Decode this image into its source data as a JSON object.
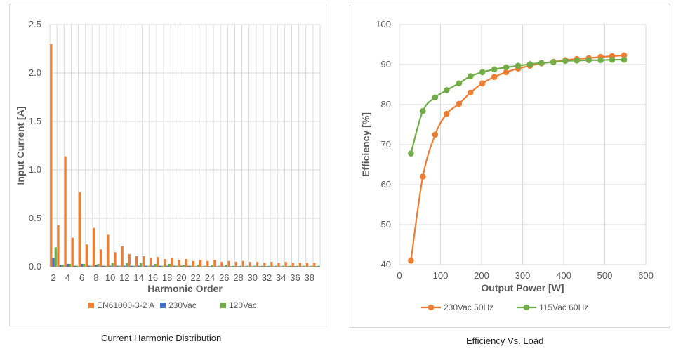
{
  "captions": {
    "left": "Current Harmonic Distribution",
    "right": "Efficiency Vs. Load"
  },
  "colors": {
    "en61000": "#ED7D31",
    "v230": "#4472C4",
    "v120": "#70AD47",
    "grid": "#d9d9d9",
    "axis_text": "#595959"
  },
  "chart_data": [
    {
      "type": "bar",
      "title": "",
      "xlabel": "Harmonic Order",
      "ylabel": "Input Current [A]",
      "ylim": [
        0,
        2.5
      ],
      "yticks": [
        "0.0",
        "0.5",
        "1.0",
        "1.5",
        "2.0",
        "2.5"
      ],
      "grid": true,
      "legend": "bottom",
      "categories": [
        "2",
        "3",
        "4",
        "5",
        "6",
        "7",
        "8",
        "9",
        "10",
        "11",
        "12",
        "13",
        "14",
        "15",
        "16",
        "17",
        "18",
        "19",
        "20",
        "21",
        "22",
        "23",
        "24",
        "25",
        "26",
        "27",
        "28",
        "29",
        "30",
        "31",
        "32",
        "33",
        "34",
        "35",
        "36",
        "37",
        "38",
        "39"
      ],
      "xtick_labels": [
        "2",
        "4",
        "6",
        "8",
        "10",
        "12",
        "14",
        "16",
        "18",
        "20",
        "22",
        "24",
        "26",
        "28",
        "30",
        "32",
        "34",
        "36",
        "38"
      ],
      "series": [
        {
          "name": "EN61000-3-2 A",
          "color": "#ED7D31",
          "values": [
            2.3,
            0.43,
            1.14,
            0.3,
            0.77,
            0.23,
            0.4,
            0.18,
            0.33,
            0.15,
            0.21,
            0.13,
            0.11,
            0.11,
            0.09,
            0.1,
            0.08,
            0.09,
            0.07,
            0.08,
            0.06,
            0.07,
            0.06,
            0.07,
            0.05,
            0.06,
            0.05,
            0.06,
            0.05,
            0.05,
            0.04,
            0.05,
            0.04,
            0.05,
            0.04,
            0.04,
            0.04,
            0.04
          ]
        },
        {
          "name": "230Vac",
          "color": "#4472C4",
          "values": [
            0.09,
            0.02,
            0.03,
            0.01,
            0.03,
            0.01,
            0.02,
            0.01,
            0.01,
            0.01,
            0.01,
            0.01,
            0.01,
            0.01,
            0.01,
            0.01,
            0.01,
            0.01,
            0.01,
            0.01,
            0.005,
            0.005,
            0.005,
            0.005,
            0.005,
            0.005,
            0.005,
            0.005,
            0.005,
            0.005,
            0.005,
            0.005,
            0.005,
            0.005,
            0.005,
            0.005,
            0.005,
            0.005
          ]
        },
        {
          "name": "120Vac",
          "color": "#70AD47",
          "values": [
            0.2,
            0.02,
            0.03,
            0.01,
            0.03,
            0.01,
            0.03,
            0.01,
            0.04,
            0.01,
            0.04,
            0.01,
            0.04,
            0.01,
            0.03,
            0.01,
            0.03,
            0.01,
            0.02,
            0.01,
            0.02,
            0.01,
            0.02,
            0.01,
            0.02,
            0.01,
            0.01,
            0.01,
            0.01,
            0.01,
            0.01,
            0.01,
            0.01,
            0.01,
            0.01,
            0.01,
            0.01,
            0.01
          ]
        }
      ]
    },
    {
      "type": "line",
      "title": "",
      "xlabel": "Output Power [W]",
      "ylabel": "Efficiency [%]",
      "xlim": [
        0,
        600
      ],
      "ylim": [
        40,
        100
      ],
      "xticks": [
        "0",
        "100",
        "200",
        "300",
        "400",
        "500",
        "600"
      ],
      "yticks": [
        "40",
        "50",
        "60",
        "70",
        "80",
        "90",
        "100"
      ],
      "grid": true,
      "legend": "bottom",
      "series": [
        {
          "name": "230Vac  50Hz",
          "color": "#ED7D31",
          "x": [
            28,
            57,
            87,
            115,
            145,
            173,
            202,
            231,
            260,
            289,
            318,
            346,
            375,
            404,
            432,
            461,
            490,
            518,
            547
          ],
          "y": [
            41.0,
            62.0,
            72.5,
            77.7,
            80.2,
            83.0,
            85.3,
            86.9,
            88.1,
            89.0,
            89.7,
            90.3,
            90.7,
            91.1,
            91.4,
            91.6,
            91.9,
            92.1,
            92.3
          ]
        },
        {
          "name": "115Vac  60Hz",
          "color": "#70AD47",
          "x": [
            28,
            57,
            87,
            115,
            145,
            173,
            202,
            231,
            260,
            289,
            318,
            346,
            375,
            404,
            432,
            461,
            490,
            518,
            547
          ],
          "y": [
            67.8,
            78.4,
            81.8,
            83.6,
            85.3,
            87.1,
            88.1,
            88.8,
            89.3,
            89.7,
            90.1,
            90.4,
            90.6,
            90.9,
            91.0,
            91.1,
            91.1,
            91.2,
            91.2
          ]
        }
      ]
    }
  ]
}
